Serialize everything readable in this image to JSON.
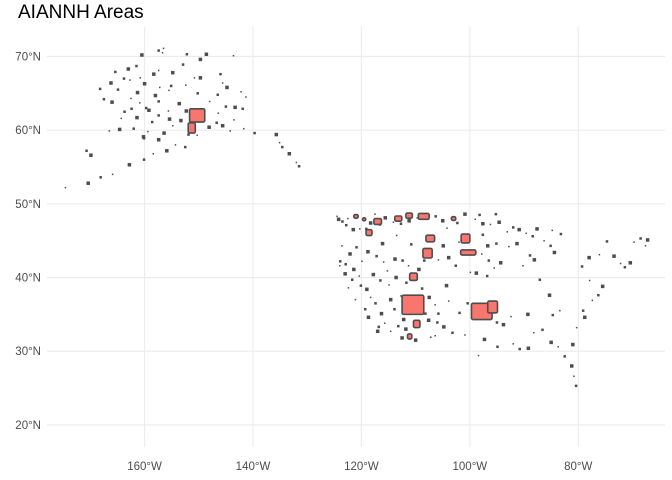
{
  "title": "AIANNH Areas",
  "map": {
    "lon_range": [
      -178,
      -64
    ],
    "lat_range": [
      17,
      74
    ],
    "x_ticks": [
      {
        "value": -160,
        "label": "160°W"
      },
      {
        "value": -140,
        "label": "140°W"
      },
      {
        "value": -120,
        "label": "120°W"
      },
      {
        "value": -100,
        "label": "100°W"
      },
      {
        "value": -80,
        "label": "80°W"
      }
    ],
    "y_ticks": [
      {
        "value": 70,
        "label": "70°N"
      },
      {
        "value": 60,
        "label": "60°N"
      },
      {
        "value": 50,
        "label": "50°N"
      },
      {
        "value": 40,
        "label": "40°N"
      },
      {
        "value": 30,
        "label": "30°N"
      },
      {
        "value": 20,
        "label": "20°N"
      }
    ],
    "grid": true,
    "colors": {
      "outline": "#4d4d4d",
      "highlight": "#f8766d",
      "grid": "#ebebeb",
      "tick_text": "#4d4d4d"
    },
    "highlighted_areas": [
      {
        "lon": -150.3,
        "lat": 62.0,
        "w": 2.8,
        "h": 1.8
      },
      {
        "lon": -151.3,
        "lat": 60.3,
        "w": 1.3,
        "h": 1.4
      },
      {
        "lon": -110.5,
        "lat": 36.3,
        "w": 4.0,
        "h": 2.6
      },
      {
        "lon": -97.8,
        "lat": 35.4,
        "w": 3.8,
        "h": 2.2
      },
      {
        "lon": -95.8,
        "lat": 36.0,
        "w": 1.8,
        "h": 1.6
      },
      {
        "lon": -100.8,
        "lat": 45.3,
        "w": 1.6,
        "h": 1.2
      },
      {
        "lon": -100.3,
        "lat": 43.4,
        "w": 2.8,
        "h": 0.7
      },
      {
        "lon": -107.8,
        "lat": 43.3,
        "w": 1.7,
        "h": 1.3
      },
      {
        "lon": -108.5,
        "lat": 48.3,
        "w": 2.0,
        "h": 0.8
      },
      {
        "lon": -111.2,
        "lat": 48.4,
        "w": 1.2,
        "h": 0.7
      },
      {
        "lon": -113.2,
        "lat": 48.0,
        "w": 1.3,
        "h": 0.7
      },
      {
        "lon": -117.0,
        "lat": 47.6,
        "w": 1.4,
        "h": 0.8
      },
      {
        "lon": -118.6,
        "lat": 46.1,
        "w": 1.1,
        "h": 0.8
      },
      {
        "lon": -107.3,
        "lat": 45.3,
        "w": 1.6,
        "h": 0.9
      },
      {
        "lon": -110.4,
        "lat": 40.1,
        "w": 1.4,
        "h": 1.0
      },
      {
        "lon": -109.8,
        "lat": 33.7,
        "w": 1.2,
        "h": 1.0
      },
      {
        "lon": -111.1,
        "lat": 32.0,
        "w": 0.8,
        "h": 0.7
      },
      {
        "lon": -121.0,
        "lat": 48.3,
        "w": 0.8,
        "h": 0.5
      },
      {
        "lon": -119.5,
        "lat": 47.9,
        "w": 0.6,
        "h": 0.4
      },
      {
        "lon": -103.0,
        "lat": 48.0,
        "w": 0.8,
        "h": 0.5
      }
    ],
    "small_areas": [
      [
        -156.5,
        71.1
      ],
      [
        -157.4,
        70.8
      ],
      [
        -160.5,
        70.2
      ],
      [
        -156.7,
        70.5
      ],
      [
        -152.2,
        70.3
      ],
      [
        -148.6,
        70.3
      ],
      [
        -143.6,
        70.1
      ],
      [
        -161.5,
        68.7
      ],
      [
        -163.0,
        68.3
      ],
      [
        -157.4,
        68.1
      ],
      [
        -165.4,
        67.9
      ],
      [
        -154.8,
        67.8
      ],
      [
        -150.8,
        67.1
      ],
      [
        -146.0,
        67.6
      ],
      [
        -158.3,
        67.6
      ],
      [
        -160.8,
        67.1
      ],
      [
        -163.8,
        67.0
      ],
      [
        -149.7,
        67.1
      ],
      [
        -152.4,
        66.1
      ],
      [
        -155.1,
        66.0
      ],
      [
        -160.0,
        66.3
      ],
      [
        -157.2,
        65.8
      ],
      [
        -164.9,
        65.5
      ],
      [
        -161.3,
        65.1
      ],
      [
        -155.5,
        65.4
      ],
      [
        -150.2,
        65.0
      ],
      [
        -144.8,
        65.8
      ],
      [
        -142.2,
        65.2
      ],
      [
        -146.5,
        64.8
      ],
      [
        -158.0,
        64.7
      ],
      [
        -162.5,
        64.3
      ],
      [
        -167.5,
        64.2
      ],
      [
        -166.0,
        63.8
      ],
      [
        -160.9,
        63.7
      ],
      [
        -157.4,
        63.9
      ],
      [
        -153.6,
        63.6
      ],
      [
        -148.0,
        63.9
      ],
      [
        -145.0,
        63.2
      ],
      [
        -143.3,
        63.1
      ],
      [
        -141.3,
        64.5
      ],
      [
        -162.4,
        62.9
      ],
      [
        -159.2,
        62.7
      ],
      [
        -155.6,
        62.6
      ],
      [
        -157.4,
        62.0
      ],
      [
        -161.4,
        61.7
      ],
      [
        -164.3,
        61.6
      ],
      [
        -158.6,
        61.1
      ],
      [
        -155.4,
        61.5
      ],
      [
        -143.5,
        61.4
      ],
      [
        -146.7,
        61.0
      ],
      [
        -145.6,
        60.6
      ],
      [
        -141.7,
        60.2
      ],
      [
        -139.7,
        59.6
      ],
      [
        -135.7,
        59.4
      ],
      [
        -135.1,
        58.3
      ],
      [
        -134.6,
        57.7
      ],
      [
        -133.3,
        56.8
      ],
      [
        -132.0,
        55.6
      ],
      [
        -131.5,
        55.1
      ],
      [
        -156.4,
        59.6
      ],
      [
        -159.4,
        59.8
      ],
      [
        -162.0,
        60.2
      ],
      [
        -164.6,
        60.1
      ],
      [
        -166.5,
        59.9
      ],
      [
        -160.1,
        58.9
      ],
      [
        -157.4,
        58.7
      ],
      [
        -154.3,
        58.0
      ],
      [
        -152.5,
        57.7
      ],
      [
        -155.9,
        57.2
      ],
      [
        -158.4,
        56.8
      ],
      [
        -160.1,
        56.0
      ],
      [
        -162.8,
        55.3
      ],
      [
        -165.9,
        54.0
      ],
      [
        -168.1,
        53.6
      ],
      [
        -170.4,
        52.8
      ],
      [
        -174.6,
        52.2
      ],
      [
        -170.7,
        57.2
      ],
      [
        -169.9,
        56.6
      ],
      [
        -150.3,
        59.3
      ],
      [
        -151.9,
        59.4
      ],
      [
        -148.1,
        60.4
      ],
      [
        -144.2,
        59.9
      ],
      [
        -168.2,
        65.6
      ],
      [
        -166.2,
        66.4
      ],
      [
        -162.7,
        66.8
      ],
      [
        -152.9,
        68.9
      ],
      [
        -149.7,
        69.6
      ],
      [
        -145.6,
        66.4
      ],
      [
        -141.9,
        62.9
      ],
      [
        -152.3,
        62.6
      ],
      [
        -154.8,
        60.6
      ],
      [
        -159.7,
        63.0
      ],
      [
        -153.3,
        61.3
      ],
      [
        -146.4,
        62.3
      ],
      [
        -163.7,
        62.5
      ],
      [
        -160.2,
        59.1
      ]
    ],
    "conus_areas": [
      [
        -122.5,
        48.0
      ],
      [
        -123.5,
        47.6
      ],
      [
        -124.2,
        47.9
      ],
      [
        -124.5,
        48.3
      ],
      [
        -122.8,
        47.1
      ],
      [
        -121.5,
        46.5
      ],
      [
        -120.3,
        46.6
      ],
      [
        -119.1,
        46.6
      ],
      [
        -118.3,
        47.4
      ],
      [
        -117.5,
        48.6
      ],
      [
        -116.6,
        47.2
      ],
      [
        -115.6,
        48.1
      ],
      [
        -114.1,
        47.5
      ],
      [
        -112.7,
        47.3
      ],
      [
        -111.2,
        47.7
      ],
      [
        -109.7,
        48.1
      ],
      [
        -106.3,
        48.3
      ],
      [
        -105.0,
        47.7
      ],
      [
        -104.2,
        46.7
      ],
      [
        -102.3,
        47.4
      ],
      [
        -100.9,
        48.6
      ],
      [
        -99.0,
        47.9
      ],
      [
        -98.2,
        48.5
      ],
      [
        -97.6,
        47.3
      ],
      [
        -96.2,
        47.2
      ],
      [
        -95.2,
        48.6
      ],
      [
        -94.6,
        47.5
      ],
      [
        -93.1,
        46.2
      ],
      [
        -92.0,
        46.8
      ],
      [
        -90.9,
        46.5
      ],
      [
        -89.6,
        46.0
      ],
      [
        -88.4,
        45.6
      ],
      [
        -87.6,
        46.6
      ],
      [
        -86.3,
        45.0
      ],
      [
        -85.1,
        44.3
      ],
      [
        -84.4,
        43.4
      ],
      [
        -84.8,
        46.4
      ],
      [
        -83.2,
        45.9
      ],
      [
        -91.3,
        44.6
      ],
      [
        -92.8,
        44.2
      ],
      [
        -95.1,
        44.6
      ],
      [
        -96.7,
        44.3
      ],
      [
        -97.8,
        43.2
      ],
      [
        -96.5,
        42.3
      ],
      [
        -94.3,
        42.0
      ],
      [
        -95.5,
        41.3
      ],
      [
        -96.8,
        40.2
      ],
      [
        -98.8,
        40.6
      ],
      [
        -99.9,
        40.7
      ],
      [
        -102.6,
        41.6
      ],
      [
        -103.9,
        42.7
      ],
      [
        -105.8,
        42.4
      ],
      [
        -108.4,
        42.3
      ],
      [
        -109.4,
        41.1
      ],
      [
        -111.3,
        41.6
      ],
      [
        -112.4,
        42.3
      ],
      [
        -113.8,
        42.5
      ],
      [
        -115.9,
        42.1
      ],
      [
        -117.2,
        42.9
      ],
      [
        -118.8,
        43.5
      ],
      [
        -119.9,
        42.2
      ],
      [
        -120.9,
        44.1
      ],
      [
        -122.1,
        43.2
      ],
      [
        -123.6,
        44.3
      ],
      [
        -123.9,
        42.2
      ],
      [
        -121.4,
        41.1
      ],
      [
        -120.4,
        40.2
      ],
      [
        -120.1,
        38.9
      ],
      [
        -119.0,
        38.4
      ],
      [
        -118.3,
        37.3
      ],
      [
        -117.4,
        36.5
      ],
      [
        -116.3,
        35.1
      ],
      [
        -115.7,
        33.8
      ],
      [
        -116.8,
        33.3
      ],
      [
        -117.0,
        32.7
      ],
      [
        -114.6,
        32.7
      ],
      [
        -113.2,
        33.4
      ],
      [
        -112.2,
        34.3
      ],
      [
        -111.3,
        35.0
      ],
      [
        -113.9,
        35.7
      ],
      [
        -114.6,
        37.0
      ],
      [
        -112.7,
        37.5
      ],
      [
        -111.7,
        39.3
      ],
      [
        -113.6,
        40.0
      ],
      [
        -114.9,
        39.0
      ],
      [
        -116.5,
        39.6
      ],
      [
        -117.8,
        40.4
      ],
      [
        -115.2,
        40.9
      ],
      [
        -108.8,
        38.5
      ],
      [
        -107.5,
        37.3
      ],
      [
        -106.4,
        36.3
      ],
      [
        -105.8,
        35.1
      ],
      [
        -104.8,
        33.3
      ],
      [
        -106.4,
        32.1
      ],
      [
        -108.2,
        35.1
      ],
      [
        -107.6,
        34.2
      ],
      [
        -103.9,
        36.8
      ],
      [
        -100.4,
        36.5
      ],
      [
        -98.6,
        34.7
      ],
      [
        -96.9,
        34.5
      ],
      [
        -95.0,
        33.9
      ],
      [
        -93.8,
        33.6
      ],
      [
        -92.0,
        31.0
      ],
      [
        -90.8,
        30.3
      ],
      [
        -89.2,
        30.4
      ],
      [
        -88.2,
        32.5
      ],
      [
        -86.6,
        32.9
      ],
      [
        -85.0,
        31.2
      ],
      [
        -83.7,
        30.6
      ],
      [
        -82.5,
        29.3
      ],
      [
        -81.2,
        28.0
      ],
      [
        -80.8,
        26.6
      ],
      [
        -80.4,
        25.3
      ],
      [
        -81.0,
        30.9
      ],
      [
        -80.3,
        33.2
      ],
      [
        -79.1,
        35.5
      ],
      [
        -78.8,
        34.6
      ],
      [
        -77.4,
        36.9
      ],
      [
        -76.3,
        37.6
      ],
      [
        -75.5,
        38.8
      ],
      [
        -77.9,
        39.6
      ],
      [
        -79.3,
        41.5
      ],
      [
        -78.0,
        42.7
      ],
      [
        -76.1,
        43.1
      ],
      [
        -74.7,
        44.9
      ],
      [
        -73.4,
        42.9
      ],
      [
        -72.2,
        41.9
      ],
      [
        -71.4,
        41.4
      ],
      [
        -70.4,
        42.0
      ],
      [
        -69.7,
        44.8
      ],
      [
        -68.5,
        45.3
      ],
      [
        -67.2,
        45.1
      ],
      [
        -67.6,
        44.3
      ],
      [
        -88.9,
        43.0
      ],
      [
        -88.1,
        42.4
      ],
      [
        -90.2,
        41.6
      ],
      [
        -87.1,
        39.7
      ],
      [
        -85.3,
        37.6
      ],
      [
        -83.4,
        35.5
      ],
      [
        -84.7,
        34.9
      ],
      [
        -89.3,
        35.0
      ],
      [
        -92.4,
        34.7
      ],
      [
        -101.9,
        35.2
      ],
      [
        -97.3,
        31.6
      ],
      [
        -98.4,
        29.4
      ],
      [
        -94.9,
        30.6
      ],
      [
        -104.3,
        38.9
      ],
      [
        -122.4,
        38.6
      ],
      [
        -121.7,
        39.7
      ],
      [
        -123.0,
        40.5
      ],
      [
        -121.1,
        37.0
      ],
      [
        -119.3,
        35.7
      ],
      [
        -118.7,
        34.6
      ],
      [
        -124.0,
        41.6
      ],
      [
        -122.9,
        41.8
      ],
      [
        -116.1,
        44.6
      ],
      [
        -113.5,
        45.7
      ],
      [
        -110.8,
        44.5
      ],
      [
        -104.9,
        44.3
      ],
      [
        -102.0,
        44.8
      ],
      [
        -97.6,
        45.8
      ],
      [
        -110.0,
        31.5
      ],
      [
        -107.2,
        31.9
      ],
      [
        -103.2,
        32.5
      ],
      [
        -112.5,
        31.8
      ],
      [
        -100.9,
        32.2
      ],
      [
        -106.0,
        33.9
      ],
      [
        -111.8,
        33.0
      ]
    ]
  }
}
